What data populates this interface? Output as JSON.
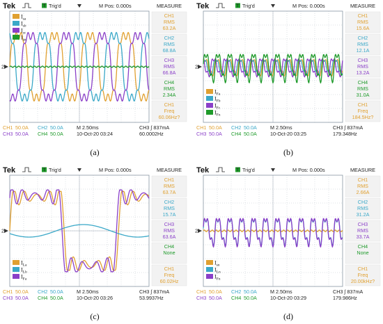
{
  "colors": {
    "ch1": "#e0a030",
    "ch2": "#3aa8c8",
    "ch3": "#8a3fc8",
    "ch4": "#1e9a2a",
    "grid": "#a9b4be"
  },
  "chart_data": [
    {
      "type": "line",
      "header": {
        "brand": "Tek",
        "trig_status": "Trig'd",
        "mpos": "M Pos: 0.000s",
        "measure_title": "MEASURE"
      },
      "caption": "(a)",
      "ylim": [
        -4,
        4
      ],
      "xlim": [
        0,
        10
      ],
      "ground_marker": "2",
      "legend": [
        {
          "main": "I",
          "sub": "sa"
        },
        {
          "main": "I",
          "sub": "sb"
        },
        {
          "main": "I",
          "sub": "sc"
        },
        {
          "main": "I",
          "sub": "sn"
        }
      ],
      "series": [
        {
          "ch": 1,
          "waveform": "trapezoid",
          "amp": 2.6,
          "cycles": 3.9,
          "phase": 0.0
        },
        {
          "ch": 2,
          "waveform": "trapezoid",
          "amp": 2.6,
          "cycles": 3.9,
          "phase": 2.094
        },
        {
          "ch": 3,
          "waveform": "trapezoid",
          "amp": 2.6,
          "cycles": 3.9,
          "phase": 4.189
        },
        {
          "ch": 4,
          "waveform": "flat",
          "amp": 0.05,
          "cycles": 11.7,
          "phase": 0.0
        }
      ],
      "measure": [
        {
          "ch": 1,
          "lines": [
            "CH1",
            "RMS",
            "63.2A"
          ]
        },
        {
          "ch": 2,
          "lines": [
            "CH2",
            "RMS",
            "68.8A"
          ]
        },
        {
          "ch": 3,
          "lines": [
            "CH3",
            "RMS",
            "66.8A"
          ]
        },
        {
          "ch": 4,
          "lines": [
            "CH4",
            "RMS",
            "2.34A"
          ]
        },
        {
          "ch": 1,
          "lines": [
            "CH1",
            "Freq",
            "60.06Hz?"
          ]
        }
      ],
      "footer": {
        "row1": [
          "CH1",
          "50.0A",
          "CH2",
          "50.0A",
          "M 2.50ms",
          "CH3 ∫ 837mA"
        ],
        "row2": [
          "CH3",
          "50.0A",
          "CH4",
          "50.0A",
          "10-Oct-20 03:24",
          "60.0002Hz"
        ]
      }
    },
    {
      "type": "line",
      "header": {
        "brand": "Tek",
        "trig_status": "Trig'd",
        "mpos": "M Pos: 0.000s",
        "measure_title": "MEASURE"
      },
      "caption": "(b)",
      "ylim": [
        -4,
        4
      ],
      "xlim": [
        0,
        10
      ],
      "ground_marker": "2",
      "legend": [
        {
          "main": "I",
          "sub": "Fa"
        },
        {
          "main": "I",
          "sub": "Fb"
        },
        {
          "main": "I",
          "sub": "Fc"
        },
        {
          "main": "I",
          "sub": "Fn"
        }
      ],
      "series": [
        {
          "ch": 1,
          "waveform": "ripple",
          "amp": 0.55,
          "cycles": 11.7,
          "phase": 0.4
        },
        {
          "ch": 2,
          "waveform": "ripple",
          "amp": 0.5,
          "cycles": 11.7,
          "phase": 1.0
        },
        {
          "ch": 3,
          "waveform": "ripple",
          "amp": 0.6,
          "cycles": 11.7,
          "phase": 2.2
        },
        {
          "ch": 4,
          "waveform": "ripple",
          "amp": 0.95,
          "cycles": 11.7,
          "phase": 0.0
        }
      ],
      "measure": [
        {
          "ch": 1,
          "lines": [
            "CH1",
            "RMS",
            "15.6A"
          ]
        },
        {
          "ch": 2,
          "lines": [
            "CH2",
            "RMS",
            "12.1A"
          ]
        },
        {
          "ch": 3,
          "lines": [
            "CH3",
            "RMS",
            "13.2A"
          ]
        },
        {
          "ch": 4,
          "lines": [
            "CH4",
            "RMS",
            "31.0A"
          ]
        },
        {
          "ch": 1,
          "lines": [
            "CH1",
            "Freq",
            "184.5Hz?"
          ]
        }
      ],
      "footer": {
        "row1": [
          "CH1",
          "50.0A",
          "CH2",
          "50.0A",
          "M 2.50ms",
          "CH3 ∫ 837mA"
        ],
        "row2": [
          "CH3",
          "50.0A",
          "CH4",
          "50.0A",
          "10-Oct-20 03:25",
          "179.348Hz"
        ]
      }
    },
    {
      "type": "line",
      "header": {
        "brand": "Tek",
        "trig_status": "Trig'd",
        "mpos": "M Pos: 0.000s",
        "measure_title": "MEASURE"
      },
      "caption": "(c)",
      "ylim": [
        -4,
        4
      ],
      "xlim": [
        0,
        10
      ],
      "ground_marker": "2",
      "legend": [
        {
          "main": "I",
          "sub": "La"
        },
        {
          "main": "I",
          "sub": "Lb"
        },
        {
          "main": "I",
          "sub": "Fa"
        }
      ],
      "series": [
        {
          "ch": 1,
          "waveform": "pulse",
          "amp": 2.7,
          "cycles": 1.28,
          "phase": 0.0
        },
        {
          "ch": 2,
          "waveform": "sine",
          "amp": 0.45,
          "cycles": 1.28,
          "phase": 3.6
        },
        {
          "ch": 3,
          "waveform": "pulse",
          "amp": 2.8,
          "cycles": 1.28,
          "phase": 0.12
        }
      ],
      "measure": [
        {
          "ch": 1,
          "lines": [
            "CH1",
            "RMS",
            "63.7A"
          ]
        },
        {
          "ch": 2,
          "lines": [
            "CH2",
            "RMS",
            "15.7A"
          ]
        },
        {
          "ch": 3,
          "lines": [
            "CH3",
            "RMS",
            "63.6A"
          ]
        },
        {
          "ch": 4,
          "lines": [
            "CH4",
            "None",
            ""
          ]
        },
        {
          "ch": 1,
          "lines": [
            "CH1",
            "Freq",
            "60.02Hz"
          ]
        }
      ],
      "footer": {
        "row1": [
          "CH1",
          "50.0A",
          "CH2",
          "50.0A",
          "M 2.50ms",
          "CH3 ∫ 837mA"
        ],
        "row2": [
          "CH3",
          "50.0A",
          "CH4",
          "50.0A",
          "10-Oct-20 03:26",
          "53.9937Hz"
        ]
      }
    },
    {
      "type": "line",
      "header": {
        "brand": "Tek",
        "trig_status": "Trig'd",
        "mpos": "M Pos: 0.000s",
        "measure_title": "MEASURE"
      },
      "caption": "(d)",
      "ylim": [
        -4,
        4
      ],
      "xlim": [
        0,
        10
      ],
      "ground_marker": "2",
      "legend": [
        {
          "main": "I",
          "sub": "sn"
        },
        {
          "main": "I",
          "sub": "Ln"
        },
        {
          "main": "I",
          "sub": "Fn"
        }
      ],
      "series": [
        {
          "ch": 1,
          "waveform": "flat",
          "amp": 0.06,
          "cycles": 11.7,
          "phase": 0.0
        },
        {
          "ch": 2,
          "waveform": "ripple",
          "amp": 0.9,
          "cycles": 11.7,
          "phase": 0.0
        },
        {
          "ch": 3,
          "waveform": "ripple",
          "amp": 0.95,
          "cycles": 11.7,
          "phase": 0.05
        }
      ],
      "measure": [
        {
          "ch": 1,
          "lines": [
            "CH1",
            "RMS",
            "2.66A"
          ]
        },
        {
          "ch": 2,
          "lines": [
            "CH2",
            "RMS",
            "31.2A"
          ]
        },
        {
          "ch": 3,
          "lines": [
            "CH3",
            "RMS",
            "33.7A"
          ]
        },
        {
          "ch": 4,
          "lines": [
            "CH4",
            "None",
            ""
          ]
        },
        {
          "ch": 1,
          "lines": [
            "CH1",
            "Freq",
            "20.00kHz?"
          ]
        }
      ],
      "footer": {
        "row1": [
          "CH1",
          "50.0A",
          "CH2",
          "50.0A",
          "M 2.50ms",
          "CH3 ∫ 837mA"
        ],
        "row2": [
          "CH3",
          "50.0A",
          "CH4",
          "50.0A",
          "10-Oct-20 03:29",
          "179.986Hz"
        ]
      }
    }
  ]
}
